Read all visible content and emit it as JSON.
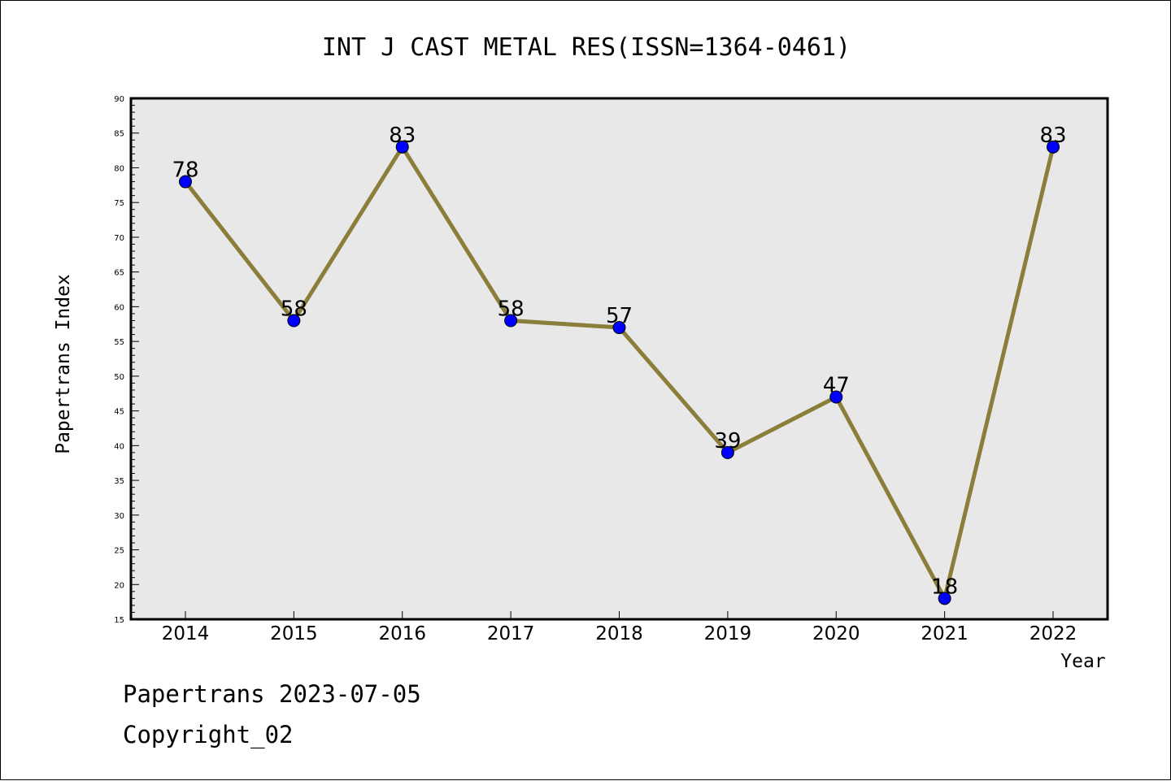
{
  "chart_data": {
    "type": "line",
    "title": "INT J CAST METAL RES(ISSN=1364-0461)",
    "xlabel": "Year",
    "ylabel": "Papertrans Index",
    "categories": [
      "2014",
      "2015",
      "2016",
      "2017",
      "2018",
      "2019",
      "2020",
      "2021",
      "2022"
    ],
    "series": [
      {
        "values": [
          78,
          58,
          83,
          58,
          57,
          39,
          47,
          18,
          83
        ]
      }
    ],
    "data_labels": [
      "78",
      "58",
      "83",
      "58",
      "57",
      "39",
      "47",
      "18",
      "83"
    ],
    "ylim": [
      15,
      90
    ],
    "yticks": [
      15,
      20,
      25,
      30,
      35,
      40,
      45,
      50,
      55,
      60,
      65,
      70,
      75,
      80,
      85,
      90
    ],
    "grid": false,
    "colors": {
      "line": "#8b7d3a",
      "marker": "#0000ff",
      "plot_background": "#e8e8e8"
    }
  },
  "footer": {
    "line1": "Papertrans 2023-07-05",
    "line2": "Copyright_02"
  }
}
